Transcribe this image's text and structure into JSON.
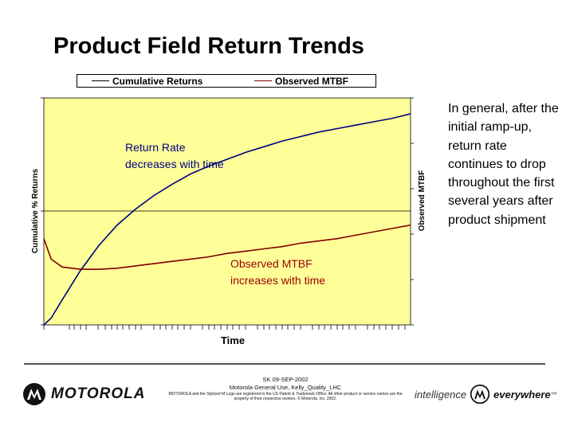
{
  "slide": {
    "title": "Product Field Return Trends",
    "side_text": "In general, after the  initial ramp-up, return rate continues to drop throughout the first several years after product shipment"
  },
  "chart_data": {
    "type": "line",
    "title": "",
    "xlabel": "Time",
    "ylabel_left": "Cumulative % Returns",
    "ylabel_right": "Observed MTBF",
    "x": [
      0,
      0.02,
      0.05,
      0.1,
      0.15,
      0.2,
      0.25,
      0.3,
      0.35,
      0.4,
      0.45,
      0.5,
      0.55,
      0.6,
      0.65,
      0.7,
      0.75,
      0.8,
      0.85,
      0.9,
      0.95,
      1.0
    ],
    "xlim": [
      0,
      1
    ],
    "ylim": [
      0,
      1
    ],
    "series": [
      {
        "name": "Cumulative Returns",
        "color": "#000080",
        "values": [
          0.0,
          0.03,
          0.11,
          0.24,
          0.35,
          0.44,
          0.51,
          0.57,
          0.62,
          0.665,
          0.7,
          0.73,
          0.76,
          0.785,
          0.81,
          0.83,
          0.85,
          0.865,
          0.88,
          0.895,
          0.91,
          0.93
        ]
      },
      {
        "name": "Observed MTBF",
        "color": "#800000",
        "values": [
          0.38,
          0.29,
          0.255,
          0.245,
          0.245,
          0.25,
          0.26,
          0.27,
          0.28,
          0.29,
          0.3,
          0.315,
          0.325,
          0.335,
          0.345,
          0.36,
          0.37,
          0.38,
          0.395,
          0.41,
          0.425,
          0.44
        ]
      }
    ],
    "annotations": [
      {
        "text": "Return Rate decreases with time",
        "color": "#000080"
      },
      {
        "text": "Observed MTBF increases with time",
        "color": "#990000"
      }
    ],
    "plot_background": "#ffff99",
    "legend_position": "top"
  },
  "footer": {
    "logo_text": "MOTOROLA",
    "line1": "SK 09-SEP-2002",
    "line2": "Motorola General Use, Kelly_Quality_LHC",
    "fine_print": "MOTOROLA and the Stylized M Logo are registered in the US Patent & Trademark Office. All other product or service names are the property of their respective owners. © Motorola, Inc. 2002.",
    "tagline_left": "intelligence",
    "tagline_right": "everywhere",
    "tagline_tm": "™"
  }
}
